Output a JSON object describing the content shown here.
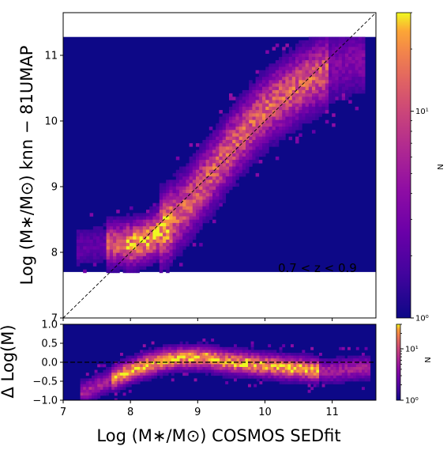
{
  "chart_data": [
    {
      "type": "heatmap",
      "panel": "main",
      "xlabel": "Log (M∗/M⊙) COSMOS SEDfit",
      "ylabel": "Log (M∗/M⊙) knn − 81UMAP",
      "xlim": [
        7.0,
        11.65
      ],
      "ylim": [
        7.0,
        11.65
      ],
      "x_ticks": [
        "7",
        "8",
        "9",
        "10",
        "11"
      ],
      "y_ticks": [
        "7",
        "8",
        "9",
        "10",
        "11"
      ],
      "annotation": "0.7 < z < 0.9",
      "reference_line": "one-to-one",
      "hexbin_y_range": [
        7.7,
        11.28
      ],
      "density_ridge": {
        "x": [
          7.2,
          7.6,
          8.0,
          8.3,
          8.6,
          8.9,
          9.2,
          9.5,
          9.8,
          10.1,
          10.4,
          10.7,
          11.0,
          11.3
        ],
        "y": [
          8.1,
          8.15,
          8.15,
          8.25,
          8.5,
          8.85,
          9.25,
          9.65,
          10.0,
          10.3,
          10.5,
          10.7,
          10.85,
          10.95
        ]
      },
      "colorbar": {
        "label": "N",
        "scale": "log",
        "range": [
          1,
          30
        ],
        "ticks": [
          {
            "value": 1,
            "label": "10⁰"
          },
          {
            "value": 10,
            "label": "10¹"
          }
        ]
      }
    },
    {
      "type": "heatmap",
      "panel": "residual",
      "xlabel": "Log (M∗/M⊙) COSMOS SEDfit",
      "ylabel": "Δ Log(M)",
      "xlim": [
        7.0,
        11.65
      ],
      "ylim": [
        -1.0,
        1.0
      ],
      "x_ticks": [
        "7",
        "8",
        "9",
        "10",
        "11"
      ],
      "y_ticks": [
        "−1.0",
        "−0.5",
        "0.0",
        "0.5",
        "1.0"
      ],
      "reference_line_y": 0.0,
      "density_ridge": {
        "x": [
          7.3,
          7.6,
          7.9,
          8.2,
          8.5,
          8.8,
          9.1,
          9.4,
          9.7,
          10.0,
          10.3,
          10.6,
          10.9,
          11.2,
          11.5
        ],
        "y": [
          -0.75,
          -0.5,
          -0.25,
          -0.05,
          0.1,
          0.15,
          0.15,
          0.05,
          0.0,
          -0.05,
          -0.1,
          -0.15,
          -0.2,
          -0.15,
          -0.1
        ]
      },
      "colorbar": {
        "label": "N",
        "scale": "log",
        "range": [
          1,
          30
        ],
        "ticks": [
          {
            "value": 1,
            "label": "10⁰"
          },
          {
            "value": 10,
            "label": "10¹"
          }
        ]
      }
    }
  ]
}
